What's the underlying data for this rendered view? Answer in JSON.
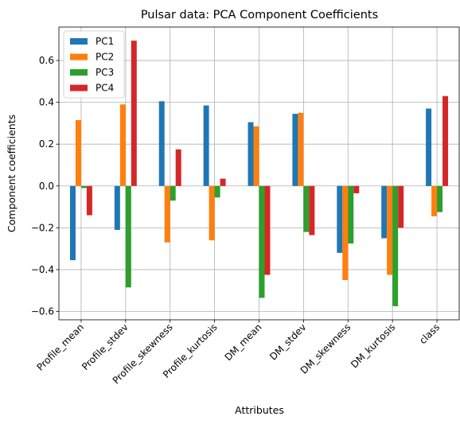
{
  "chart_data": {
    "type": "bar",
    "title": "Pulsar data: PCA Component Coefficients",
    "xlabel": "Attributes",
    "ylabel": "Component coefficients",
    "categories": [
      "Profile_mean",
      "Profile_stdev",
      "Profile_skewness",
      "Profile_kurtosis",
      "DM_mean",
      "DM_stdev",
      "DM_skewness",
      "DM_kurtosis",
      "class"
    ],
    "series": [
      {
        "name": "PC1",
        "color": "#1f77b4",
        "values": [
          -0.355,
          -0.21,
          0.405,
          0.385,
          0.305,
          0.345,
          -0.32,
          -0.25,
          0.37
        ]
      },
      {
        "name": "PC2",
        "color": "#ff7f0e",
        "values": [
          0.315,
          0.39,
          -0.27,
          -0.26,
          0.285,
          0.35,
          -0.45,
          -0.425,
          -0.145
        ]
      },
      {
        "name": "PC3",
        "color": "#2ca02c",
        "values": [
          -0.01,
          -0.485,
          -0.07,
          -0.055,
          -0.535,
          -0.22,
          -0.275,
          -0.575,
          -0.125
        ]
      },
      {
        "name": "PC4",
        "color": "#d62728",
        "values": [
          -0.14,
          0.695,
          0.175,
          0.035,
          -0.425,
          -0.235,
          -0.035,
          -0.2,
          0.43
        ]
      }
    ],
    "ylim": [
      -0.64,
      0.76
    ],
    "yticks": [
      -0.6,
      -0.4,
      -0.2,
      0.0,
      0.2,
      0.4,
      0.6
    ],
    "ytick_labels": [
      "−0.6",
      "−0.4",
      "−0.2",
      "0.0",
      "0.2",
      "0.4",
      "0.6"
    ],
    "grid": true,
    "legend_position": "top-left"
  }
}
